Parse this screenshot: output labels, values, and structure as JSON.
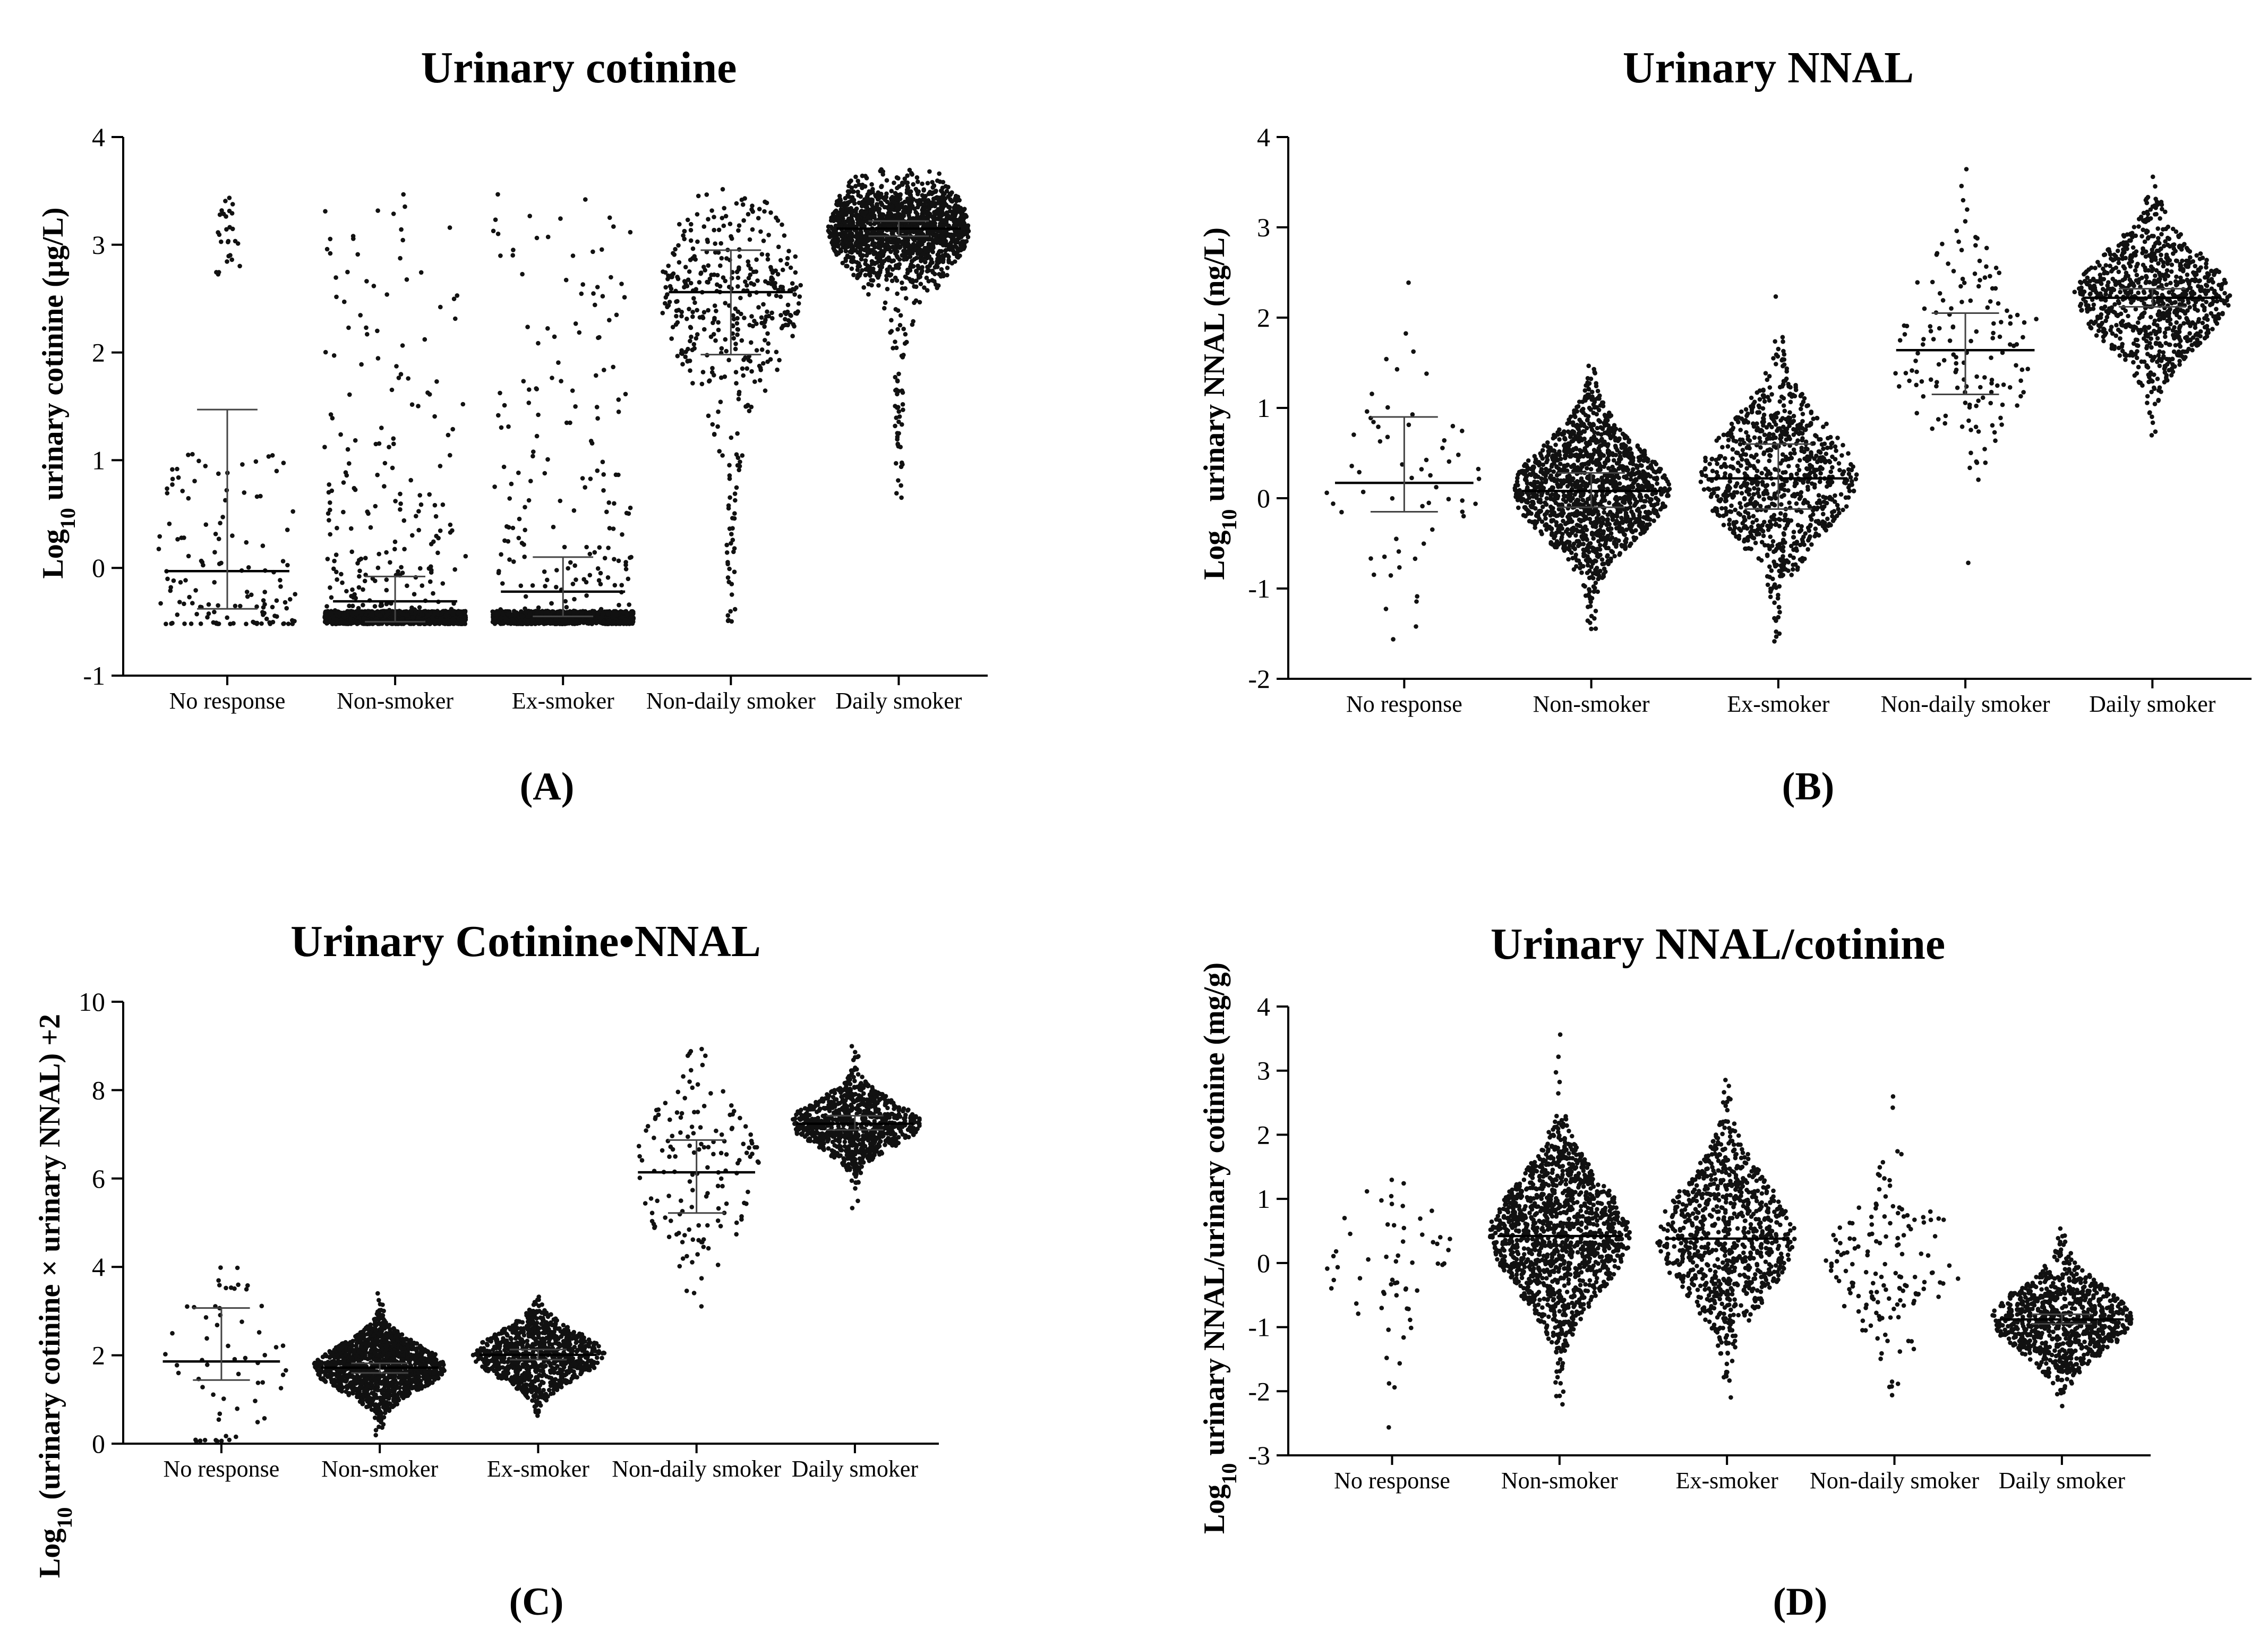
{
  "chart_data": [
    {
      "id": "A",
      "type": "scatter",
      "subtype": "dot-plot",
      "title": "Urinary cotinine",
      "ylabel": "Log10 urinary cotinine (µg/L)",
      "ylabel_main": "Log",
      "ylabel_sub": "10",
      "ylabel_rest": " urinary cotinine (µg/L)",
      "panel_label": "(A)",
      "ylim": [
        -1,
        4
      ],
      "yticks": [
        -1,
        0,
        1,
        2,
        3,
        4
      ],
      "categories": [
        "No response",
        "Non-smoker",
        "Ex-smoker",
        "Non-daily smoker",
        "Daily smoker"
      ],
      "means": [
        -0.03,
        -0.31,
        -0.22,
        2.56,
        3.15
      ],
      "sd_upper": [
        1.47,
        -0.08,
        0.1,
        2.95,
        3.22
      ],
      "sd_lower": [
        -0.38,
        -0.5,
        -0.45,
        1.98,
        3.08
      ],
      "counts": [
        160,
        1500,
        1200,
        420,
        1600
      ],
      "shapes": [
        "bimodal-low",
        "floor",
        "floor",
        "upper",
        "dense"
      ]
    },
    {
      "id": "B",
      "type": "scatter",
      "subtype": "dot-plot",
      "title": "Urinary NNAL",
      "ylabel": "Log10 urinary NNAL (ng/L)",
      "ylabel_main": "Log",
      "ylabel_sub": "10",
      "ylabel_rest": " urinary NNAL (ng/L)",
      "panel_label": "(B)",
      "ylim": [
        -2,
        4
      ],
      "yticks": [
        -2,
        -1,
        0,
        1,
        2,
        3,
        4
      ],
      "categories": [
        "No response",
        "Non-smoker",
        "Ex-smoker",
        "Non-daily smoker",
        "Daily smoker"
      ],
      "means": [
        0.17,
        0.08,
        0.22,
        1.64,
        2.22
      ],
      "sd_upper": [
        0.9,
        0.28,
        0.6,
        2.05,
        2.32
      ],
      "sd_lower": [
        -0.15,
        -0.1,
        -0.12,
        1.15,
        2.12
      ],
      "counts": [
        60,
        1400,
        900,
        150,
        900
      ],
      "shapes": [
        "normal",
        "normal",
        "normal",
        "normal",
        "normal"
      ]
    },
    {
      "id": "C",
      "type": "scatter",
      "subtype": "dot-plot",
      "title": "Urinary Cotinine•NNAL",
      "ylabel": "Log10 (urinary cotinine × urinary NNAL) +2",
      "ylabel_main": "Log",
      "ylabel_sub": "10",
      "ylabel_rest": " (urinary cotinine × urinary NNAL) +2",
      "panel_label": "(C)",
      "ylim": [
        0,
        10
      ],
      "yticks": [
        0,
        2,
        4,
        6,
        8,
        10
      ],
      "categories": [
        "No response",
        "Non-smoker",
        "Ex-smoker",
        "Non-daily smoker",
        "Daily smoker"
      ],
      "means": [
        1.86,
        1.72,
        2.01,
        6.14,
        7.24
      ],
      "sd_upper": [
        3.07,
        1.82,
        2.13,
        6.87,
        7.42
      ],
      "sd_lower": [
        1.44,
        1.6,
        1.9,
        5.22,
        7.1
      ],
      "counts": [
        60,
        1400,
        900,
        150,
        900
      ],
      "shapes": [
        "normal",
        "normal",
        "normal",
        "normal",
        "normal"
      ]
    },
    {
      "id": "D",
      "type": "scatter",
      "subtype": "dot-plot",
      "title": "Urinary NNAL/cotinine",
      "ylabel": "Log10 urinary NNAL/urinary cotinine (mg/g)",
      "ylabel_main": "Log",
      "ylabel_sub": "10",
      "ylabel_rest": " urinary NNAL/urinary cotinine (mg/g)",
      "panel_label": "(D)",
      "ylim": [
        -3,
        4
      ],
      "yticks": [
        -3,
        -2,
        -1,
        0,
        1,
        2,
        3,
        4
      ],
      "categories": [
        "No response",
        "Non-smoker",
        "Ex-smoker",
        "Non-daily smoker",
        "Daily smoker"
      ],
      "means": [
        null,
        0.42,
        0.38,
        null,
        -0.88
      ],
      "sd_upper": [
        null,
        null,
        null,
        null,
        -0.8
      ],
      "sd_lower": [
        null,
        null,
        null,
        null,
        -0.95
      ],
      "counts": [
        60,
        1400,
        900,
        150,
        900
      ],
      "shapes": [
        "normal",
        "normal",
        "normal",
        "normal",
        "normal"
      ]
    }
  ]
}
